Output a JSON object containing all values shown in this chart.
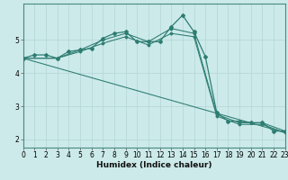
{
  "xlabel": "Humidex (Indice chaleur)",
  "bg_color": "#cceaea",
  "grid_color_major": "#b8d8d8",
  "grid_color_minor": "#d4ecec",
  "line_color": "#2e7d72",
  "lines": [
    {
      "x": [
        0,
        1,
        2,
        3,
        4,
        5,
        6,
        7,
        8,
        9,
        10,
        11,
        12,
        13,
        14,
        15,
        16,
        17,
        18,
        19,
        20,
        21,
        22,
        23
      ],
      "y": [
        4.45,
        4.55,
        4.55,
        4.45,
        4.65,
        4.7,
        4.75,
        5.05,
        5.2,
        5.25,
        4.95,
        4.95,
        4.95,
        5.4,
        5.75,
        5.25,
        4.5,
        2.8,
        2.55,
        2.55,
        2.5,
        2.5,
        2.25,
        2.25
      ],
      "marker": true
    },
    {
      "x": [
        0,
        3,
        5,
        7,
        9,
        11,
        13,
        15,
        17,
        19,
        21,
        23
      ],
      "y": [
        4.45,
        4.45,
        4.7,
        5.0,
        5.2,
        4.95,
        5.35,
        5.2,
        2.75,
        2.5,
        2.5,
        2.25
      ],
      "marker": true
    },
    {
      "x": [
        0,
        3,
        5,
        7,
        9,
        11,
        13,
        15,
        17,
        19,
        21,
        23
      ],
      "y": [
        4.45,
        4.45,
        4.65,
        4.9,
        5.1,
        4.85,
        5.2,
        5.1,
        2.7,
        2.45,
        2.45,
        2.2
      ],
      "marker": true
    },
    {
      "x": [
        0,
        23
      ],
      "y": [
        4.45,
        2.2
      ],
      "marker": false
    }
  ],
  "xlim": [
    0,
    23
  ],
  "ylim": [
    1.75,
    6.1
  ],
  "yticks": [
    2,
    3,
    4,
    5
  ],
  "xticks": [
    0,
    1,
    2,
    3,
    4,
    5,
    6,
    7,
    8,
    9,
    10,
    11,
    12,
    13,
    14,
    15,
    16,
    17,
    18,
    19,
    20,
    21,
    22,
    23
  ],
  "xlabel_fontsize": 6.5,
  "tick_fontsize": 5.5,
  "linewidth": 0.9
}
